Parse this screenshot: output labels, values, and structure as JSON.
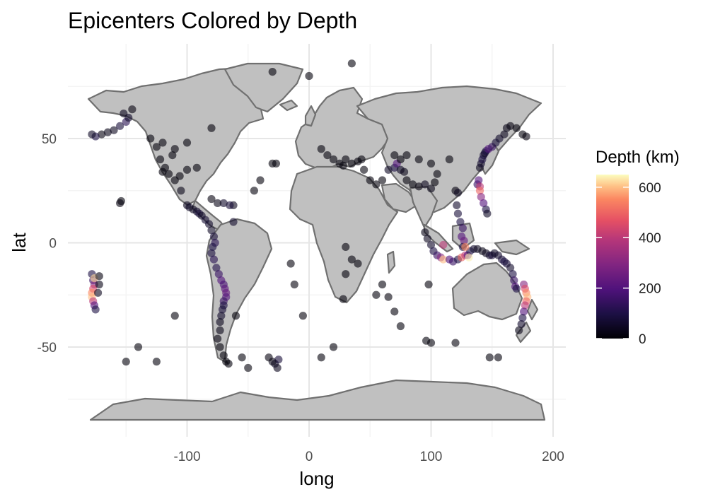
{
  "chart_data": {
    "type": "scatter",
    "title": "Epicenters Colored by Depth",
    "xlabel": "long",
    "ylabel": "lat",
    "xlim": [
      -180,
      210
    ],
    "ylim": [
      -90,
      90
    ],
    "x_ticks": [
      -100,
      0,
      100,
      200
    ],
    "y_ticks": [
      50,
      0,
      -50
    ],
    "x_tick_labels": [
      "-100",
      "0",
      "100",
      "200"
    ],
    "y_tick_labels": [
      "50",
      "0",
      "-50"
    ],
    "grid": true,
    "legend": {
      "title": "Depth (km)",
      "placement": "right",
      "ticks": [
        0,
        200,
        400,
        600
      ],
      "tick_labels": [
        "0",
        "200",
        "400",
        "600"
      ],
      "range": [
        0,
        650
      ],
      "colormap": "magma"
    },
    "colors": {
      "land": "#c0c0c0",
      "border": "#707070",
      "grid_major": "#e6e6e6",
      "grid_minor": "#f3f3f3"
    },
    "points": [
      [
        -170,
        52,
        20
      ],
      [
        -165,
        53,
        30
      ],
      [
        -160,
        54,
        40
      ],
      [
        -155,
        56,
        80
      ],
      [
        -150,
        58,
        120
      ],
      [
        -148,
        60,
        60
      ],
      [
        -152,
        62,
        40
      ],
      [
        -145,
        64,
        20
      ],
      [
        -175,
        51,
        100
      ],
      [
        -178,
        52,
        50
      ],
      [
        -130,
        50,
        10
      ],
      [
        -125,
        46,
        10
      ],
      [
        -122,
        40,
        10
      ],
      [
        -118,
        36,
        10
      ],
      [
        -120,
        34,
        10
      ],
      [
        -115,
        33,
        10
      ],
      [
        -110,
        30,
        10
      ],
      [
        -106,
        32,
        10
      ],
      [
        -100,
        35,
        10
      ],
      [
        -92,
        36,
        10
      ],
      [
        -120,
        48,
        10
      ],
      [
        -112,
        42,
        10
      ],
      [
        -105,
        25,
        30
      ],
      [
        -100,
        18,
        40
      ],
      [
        -98,
        17,
        50
      ],
      [
        -95,
        16,
        40
      ],
      [
        -92,
        15,
        60
      ],
      [
        -90,
        14,
        80
      ],
      [
        -88,
        13,
        50
      ],
      [
        -85,
        11,
        70
      ],
      [
        -82,
        9,
        60
      ],
      [
        -80,
        6,
        50
      ],
      [
        -78,
        3,
        80
      ],
      [
        -77,
        0,
        120
      ],
      [
        -79,
        -2,
        100
      ],
      [
        -80,
        -5,
        90
      ],
      [
        -78,
        -8,
        120
      ],
      [
        -76,
        -12,
        110
      ],
      [
        -74,
        -15,
        150
      ],
      [
        -72,
        -18,
        200
      ],
      [
        -70,
        -20,
        180
      ],
      [
        -69,
        -22,
        220
      ],
      [
        -68,
        -24,
        240
      ],
      [
        -68,
        -26,
        200
      ],
      [
        -70,
        -28,
        150
      ],
      [
        -70,
        -30,
        100
      ],
      [
        -71,
        -32,
        80
      ],
      [
        -72,
        -35,
        60
      ],
      [
        -73,
        -38,
        40
      ],
      [
        -73,
        -42,
        30
      ],
      [
        -75,
        -46,
        20
      ],
      [
        -73,
        -50,
        10
      ],
      [
        -70,
        -54,
        10
      ],
      [
        -68,
        -57,
        10
      ],
      [
        -66,
        -58,
        10
      ],
      [
        -62,
        18,
        40
      ],
      [
        -65,
        18,
        80
      ],
      [
        -70,
        19,
        60
      ],
      [
        -75,
        19,
        30
      ],
      [
        -80,
        21,
        20
      ],
      [
        -62,
        10,
        60
      ],
      [
        -28,
        -58,
        50
      ],
      [
        -25,
        -56,
        80
      ],
      [
        -26,
        -60,
        40
      ],
      [
        -30,
        -57,
        30
      ],
      [
        -33,
        -55,
        20
      ],
      [
        -178,
        -15,
        100
      ],
      [
        -177,
        -18,
        150
      ],
      [
        -176,
        -20,
        300
      ],
      [
        -177,
        -22,
        450
      ],
      [
        -178,
        -24,
        550
      ],
      [
        -178,
        -26,
        600
      ],
      [
        -177,
        -28,
        400
      ],
      [
        -176,
        -30,
        200
      ],
      [
        -175,
        -32,
        100
      ],
      [
        -176,
        -17,
        620
      ],
      [
        -172,
        -16,
        20
      ],
      [
        -172,
        -20,
        30
      ],
      [
        -173,
        -24,
        40
      ],
      [
        -155,
        19,
        20
      ],
      [
        -154,
        20,
        10
      ],
      [
        -30,
        38,
        10
      ],
      [
        -27,
        38,
        10
      ],
      [
        -40,
        30,
        10
      ],
      [
        -45,
        25,
        10
      ],
      [
        -15,
        -10,
        10
      ],
      [
        -12,
        -20,
        10
      ],
      [
        -5,
        -35,
        10
      ],
      [
        10,
        45,
        10
      ],
      [
        15,
        42,
        10
      ],
      [
        20,
        40,
        10
      ],
      [
        25,
        38,
        10
      ],
      [
        28,
        37,
        10
      ],
      [
        30,
        40,
        10
      ],
      [
        35,
        38,
        10
      ],
      [
        40,
        39,
        10
      ],
      [
        43,
        40,
        10
      ],
      [
        45,
        35,
        10
      ],
      [
        50,
        30,
        10
      ],
      [
        55,
        28,
        10
      ],
      [
        60,
        30,
        10
      ],
      [
        65,
        35,
        50
      ],
      [
        70,
        36,
        100
      ],
      [
        72,
        38,
        200
      ],
      [
        75,
        35,
        50
      ],
      [
        78,
        34,
        30
      ],
      [
        80,
        30,
        10
      ],
      [
        85,
        28,
        10
      ],
      [
        90,
        27,
        20
      ],
      [
        95,
        28,
        40
      ],
      [
        100,
        26,
        30
      ],
      [
        103,
        29,
        10
      ],
      [
        105,
        33,
        10
      ],
      [
        100,
        38,
        10
      ],
      [
        90,
        40,
        10
      ],
      [
        80,
        42,
        10
      ],
      [
        75,
        40,
        10
      ],
      [
        70,
        42,
        10
      ],
      [
        115,
        40,
        10
      ],
      [
        120,
        25,
        20
      ],
      [
        122,
        24,
        40
      ],
      [
        121,
        18,
        60
      ],
      [
        122,
        14,
        80
      ],
      [
        124,
        10,
        100
      ],
      [
        126,
        7,
        150
      ],
      [
        125,
        3,
        200
      ],
      [
        127,
        1,
        250
      ],
      [
        126,
        -2,
        100
      ],
      [
        95,
        5,
        30
      ],
      [
        97,
        2,
        40
      ],
      [
        100,
        -1,
        60
      ],
      [
        102,
        -4,
        100
      ],
      [
        105,
        -6,
        150
      ],
      [
        108,
        -7,
        300
      ],
      [
        110,
        -8,
        600
      ],
      [
        115,
        -8,
        200
      ],
      [
        118,
        -9,
        150
      ],
      [
        122,
        -8,
        100
      ],
      [
        125,
        -7,
        500
      ],
      [
        128,
        -6,
        400
      ],
      [
        130,
        -6,
        200
      ],
      [
        132,
        -4,
        100
      ],
      [
        135,
        -3,
        60
      ],
      [
        138,
        -3,
        40
      ],
      [
        142,
        -4,
        30
      ],
      [
        145,
        -5,
        40
      ],
      [
        148,
        -6,
        60
      ],
      [
        150,
        -6,
        80
      ],
      [
        152,
        -5,
        50
      ],
      [
        155,
        -6,
        60
      ],
      [
        158,
        -8,
        80
      ],
      [
        160,
        -9,
        100
      ],
      [
        162,
        -10,
        80
      ],
      [
        165,
        -12,
        60
      ],
      [
        167,
        -15,
        100
      ],
      [
        168,
        -18,
        150
      ],
      [
        169,
        -21,
        200
      ],
      [
        170,
        -22,
        100
      ],
      [
        140,
        36,
        40
      ],
      [
        141,
        38,
        60
      ],
      [
        142,
        40,
        100
      ],
      [
        143,
        42,
        80
      ],
      [
        144,
        43,
        60
      ],
      [
        145,
        44,
        100
      ],
      [
        147,
        45,
        200
      ],
      [
        150,
        46,
        150
      ],
      [
        153,
        48,
        80
      ],
      [
        156,
        50,
        60
      ],
      [
        160,
        52,
        40
      ],
      [
        162,
        55,
        30
      ],
      [
        165,
        56,
        20
      ],
      [
        170,
        55,
        10
      ],
      [
        175,
        52,
        10
      ],
      [
        178,
        51,
        20
      ],
      [
        138,
        28,
        150
      ],
      [
        139,
        30,
        200
      ],
      [
        140,
        27,
        400
      ],
      [
        140,
        25,
        500
      ],
      [
        141,
        22,
        300
      ],
      [
        143,
        19,
        200
      ],
      [
        145,
        16,
        100
      ],
      [
        146,
        14,
        50
      ],
      [
        176,
        -20,
        300
      ],
      [
        177,
        -22,
        450
      ],
      [
        178,
        -24,
        550
      ],
      [
        179,
        -26,
        600
      ],
      [
        178,
        -28,
        500
      ],
      [
        177,
        -30,
        400
      ],
      [
        176,
        -33,
        200
      ],
      [
        175,
        -36,
        100
      ],
      [
        174,
        -39,
        60
      ],
      [
        172,
        -42,
        30
      ],
      [
        131,
        -7,
        640
      ],
      [
        128,
        -2,
        550
      ],
      [
        110,
        -1,
        400
      ],
      [
        98,
        -20,
        10
      ],
      [
        96,
        -47,
        10
      ],
      [
        100,
        -48,
        10
      ],
      [
        120,
        -48,
        10
      ],
      [
        148,
        -55,
        10
      ],
      [
        155,
        -55,
        10
      ],
      [
        30,
        -2,
        10
      ],
      [
        35,
        -8,
        10
      ],
      [
        40,
        -10,
        10
      ],
      [
        30,
        -15,
        10
      ],
      [
        28,
        -27,
        10
      ],
      [
        55,
        -25,
        10
      ],
      [
        60,
        -20,
        10
      ],
      [
        65,
        -26,
        10
      ],
      [
        70,
        -33,
        10
      ],
      [
        75,
        -40,
        10
      ],
      [
        35,
        86,
        10
      ],
      [
        0,
        80,
        10
      ],
      [
        -30,
        82,
        10
      ],
      [
        -80,
        55,
        10
      ],
      [
        -100,
        48,
        10
      ],
      [
        -110,
        45,
        10
      ],
      [
        -150,
        -57,
        10
      ],
      [
        -125,
        -57,
        10
      ],
      [
        -140,
        -50,
        10
      ],
      [
        -110,
        -35,
        10
      ],
      [
        -60,
        -35,
        10
      ],
      [
        -55,
        -55,
        10
      ],
      [
        -50,
        -60,
        10
      ],
      [
        20,
        -50,
        10
      ],
      [
        10,
        -55,
        10
      ]
    ]
  }
}
